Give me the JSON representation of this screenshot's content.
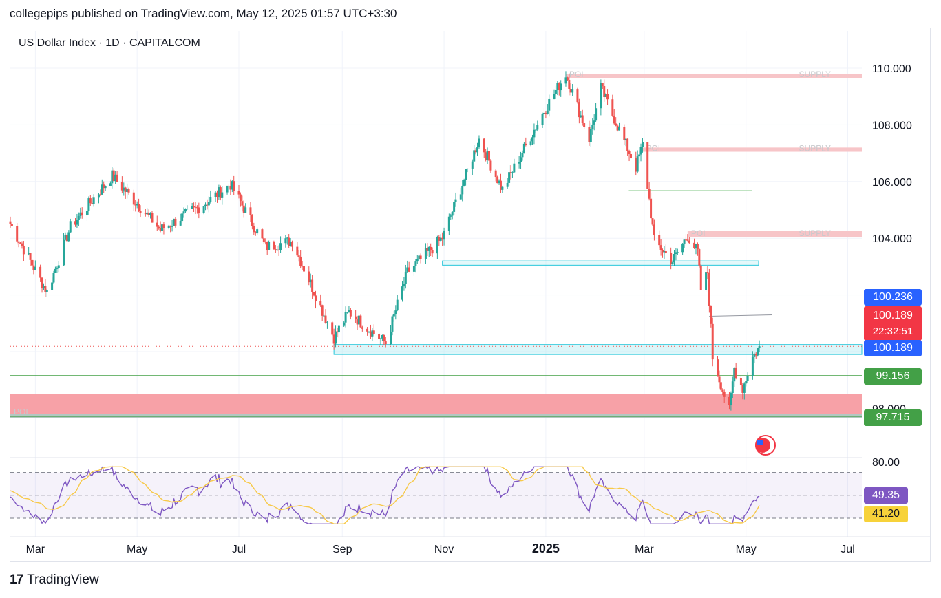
{
  "header": {
    "published": "collegepips published on TradingView.com, May 12, 2025 01:57 UTC+3:30"
  },
  "symbol_title": "US Dollar Index · 1D · CAPITALCOM",
  "footer": {
    "logo": "17",
    "brand": "TradingView"
  },
  "price_tags": {
    "blue_top": "100.236",
    "red_price": "100.189",
    "red_timer": "22:32:51",
    "blue_bottom": "100.189",
    "green_mid": "99.156",
    "green_low": "97.715",
    "rsi": "49.35",
    "rsi_ma": "41.20"
  },
  "colors": {
    "up": "#26a69a",
    "down": "#ef5350",
    "blue_tag": "#2962ff",
    "red_tag": "#f23645",
    "green_tag": "#43a047",
    "rsi_line": "#7e57c2",
    "rsi_ma": "#f7c948",
    "supply_zone": "#f7c5c8",
    "demand_zone": "#b2ebf2",
    "poi_zone": "#f7a1a7"
  },
  "chart_data": {
    "type": "candlestick",
    "ylim": [
      97.5,
      110.3
    ],
    "y_ticks": [
      "110.000",
      "108.000",
      "106.000",
      "104.000",
      "98.000"
    ],
    "x_labels": [
      "Mar",
      "May",
      "Jul",
      "Sep",
      "Nov",
      "2025",
      "Mar",
      "May",
      "Jul"
    ],
    "keypoints": [
      {
        "date": "2024-02-15",
        "close": 104.5
      },
      {
        "date": "2024-03-08",
        "close": 102.1
      },
      {
        "date": "2024-03-22",
        "close": 104.4
      },
      {
        "date": "2024-04-16",
        "close": 106.2
      },
      {
        "date": "2024-05-15",
        "close": 104.3
      },
      {
        "date": "2024-06-10",
        "close": 105.2
      },
      {
        "date": "2024-06-26",
        "close": 105.9
      },
      {
        "date": "2024-07-17",
        "close": 103.7
      },
      {
        "date": "2024-08-02",
        "close": 103.9
      },
      {
        "date": "2024-08-27",
        "close": 100.5
      },
      {
        "date": "2024-09-05",
        "close": 101.4
      },
      {
        "date": "2024-09-27",
        "close": 100.3
      },
      {
        "date": "2024-10-10",
        "close": 102.8
      },
      {
        "date": "2024-10-31",
        "close": 104.0
      },
      {
        "date": "2024-11-22",
        "close": 107.5
      },
      {
        "date": "2024-12-06",
        "close": 105.7
      },
      {
        "date": "2024-12-31",
        "close": 108.5
      },
      {
        "date": "2025-01-13",
        "close": 109.8
      },
      {
        "date": "2025-01-27",
        "close": 107.5
      },
      {
        "date": "2025-02-03",
        "close": 109.3
      },
      {
        "date": "2025-02-24",
        "close": 106.5
      },
      {
        "date": "2025-02-28",
        "close": 107.3
      },
      {
        "date": "2025-03-07",
        "close": 103.9
      },
      {
        "date": "2025-03-18",
        "close": 103.2
      },
      {
        "date": "2025-03-27",
        "close": 104.1
      },
      {
        "date": "2025-04-02",
        "close": 103.5
      },
      {
        "date": "2025-04-04",
        "close": 102.2
      },
      {
        "date": "2025-04-08",
        "close": 102.8
      },
      {
        "date": "2025-04-11",
        "close": 99.8
      },
      {
        "date": "2025-04-21",
        "close": 97.9
      },
      {
        "date": "2025-04-24",
        "close": 99.4
      },
      {
        "date": "2025-04-29",
        "close": 98.7
      },
      {
        "date": "2025-05-05",
        "close": 99.8
      },
      {
        "date": "2025-05-09",
        "close": 100.19
      }
    ],
    "zones": [
      {
        "label_left": "POI",
        "label_right": "SUPPLY",
        "from": 109.8,
        "to": 109.7,
        "start": "2025-01-13"
      },
      {
        "label_left": "POI",
        "label_right": "SUPPLY",
        "from": 107.2,
        "to": 107.05,
        "start": "2025-02-28"
      },
      {
        "label_left": "POI",
        "label_right": "SUPPLY",
        "from": 104.25,
        "to": 104.05,
        "start": "2025-03-27"
      },
      {
        "label_left": "",
        "label_right": "",
        "from": 103.2,
        "to": 103.05,
        "start": "2024-10-31"
      },
      {
        "label_left": "",
        "label_right": "",
        "from": 100.25,
        "to": 99.9,
        "start": "2024-08-27"
      },
      {
        "label_left": "POI",
        "label_right": "",
        "from": 98.5,
        "to": 97.75,
        "start": "2024-02-15"
      }
    ],
    "levels": [
      {
        "value": 99.156
      },
      {
        "value": 97.715
      },
      {
        "value": 100.189
      }
    ],
    "rsi": {
      "ylim": [
        20,
        80
      ],
      "tick": "80.00",
      "bands": [
        70,
        50,
        30
      ],
      "last": 49.35,
      "ma_last": 41.2
    }
  }
}
